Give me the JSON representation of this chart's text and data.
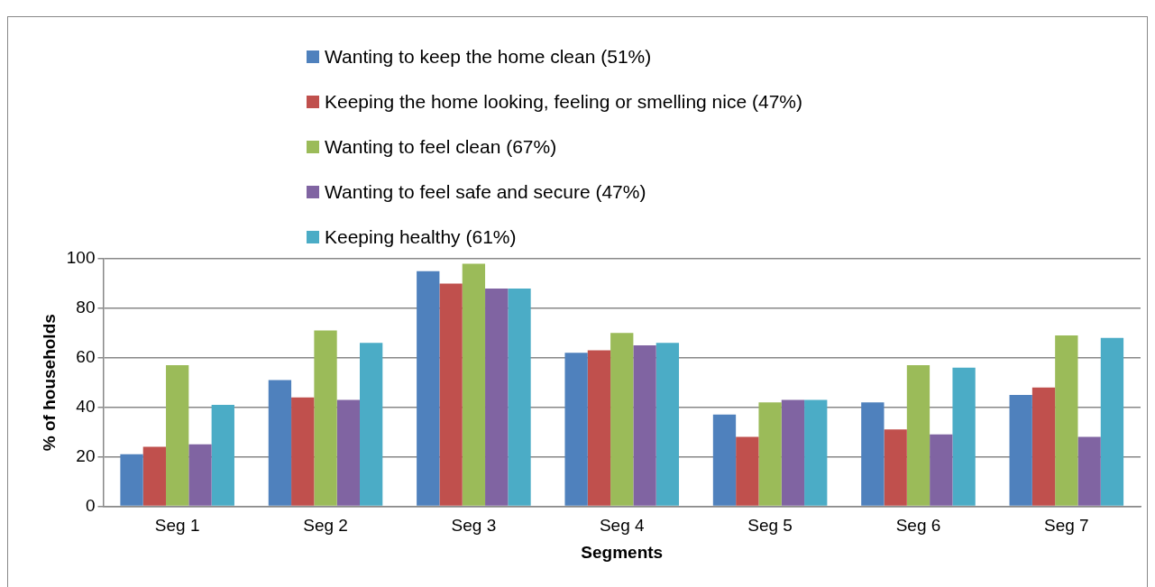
{
  "chart_data": {
    "type": "bar",
    "xlabel": "Segments",
    "ylabel": "% of households",
    "categories": [
      "Seg 1",
      "Seg 2",
      "Seg 3",
      "Seg 4",
      "Seg 5",
      "Seg 6",
      "Seg 7"
    ],
    "series": [
      {
        "name": "Wanting to keep the home clean (51%)",
        "color": "#4f81bd",
        "values": [
          21,
          51,
          95,
          62,
          37,
          42,
          45
        ]
      },
      {
        "name": "Keeping the home looking, feeling or smelling nice (47%)",
        "color": "#c0504d",
        "values": [
          24,
          44,
          90,
          63,
          28,
          31,
          48
        ]
      },
      {
        "name": "Wanting to feel clean (67%)",
        "color": "#9bbb59",
        "values": [
          57,
          71,
          98,
          70,
          42,
          57,
          69
        ]
      },
      {
        "name": "Wanting to feel safe and secure (47%)",
        "color": "#8064a2",
        "values": [
          25,
          43,
          88,
          65,
          43,
          29,
          28
        ]
      },
      {
        "name": "Keeping healthy (61%)",
        "color": "#4bacc6",
        "values": [
          41,
          66,
          88,
          66,
          43,
          56,
          68
        ]
      }
    ],
    "ylim": [
      0,
      100
    ],
    "yticks": [
      0,
      20,
      40,
      60,
      80,
      100
    ],
    "grid": "y",
    "legend": "top"
  }
}
